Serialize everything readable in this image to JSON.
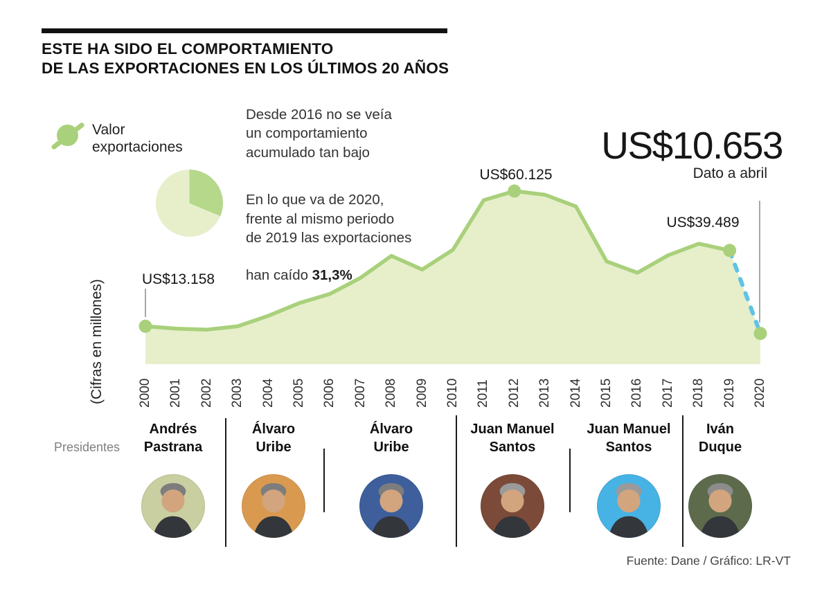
{
  "header": {
    "title_line1": "ESTE HA SIDO EL COMPORTAMIENTO",
    "title_line2": "DE LAS EXPORTACIONES EN LOS ÚLTIMOS 20 AÑOS"
  },
  "legend": {
    "label": "Valor\nexportaciones"
  },
  "annotations": {
    "note1": "Desde 2016 no se veía\nun comportamiento\nacumulado tan bajo",
    "note2_lines": "En lo que va de 2020,\nfrente al mismo periodo\nde 2019 las exportaciones",
    "note2_tail": "han caído",
    "note2_bold": "31,3%"
  },
  "pie": {
    "percent_dark": 31.3
  },
  "highlight": {
    "caption": "Dato a abril"
  },
  "axis": {
    "y_label": "(Cifras en millones)"
  },
  "presidents": {
    "caption": "Presidentes",
    "items": [
      {
        "name": "Andrés\nPastrana",
        "photo_bg": "#c9cfa0"
      },
      {
        "name": "Álvaro\nUribe",
        "photo_bg": "#d99a50"
      },
      {
        "name": "Álvaro\nUribe",
        "photo_bg": "#3e5f9c"
      },
      {
        "name": "Juan Manuel\nSantos",
        "photo_bg": "#7c4a38"
      },
      {
        "name": "Juan Manuel\nSantos",
        "photo_bg": "#47b2e4"
      },
      {
        "name": "Iván\nDuque",
        "photo_bg": "#5d6b4c"
      }
    ]
  },
  "footer": {
    "source": "Fuente: Dane / Gráfico: LR-VT"
  },
  "colors": {
    "line_green": "#a9d07b",
    "area_fill": "#e6efca",
    "pie_dark": "#b5d88b",
    "pie_light": "#e6efca",
    "dashed_blue": "#5ec3e6",
    "leader_gray": "#8a8a8a",
    "title_black": "#121212"
  },
  "chart_data": {
    "type": "area",
    "title": "Valor exportaciones",
    "xlabel": "",
    "ylabel": "(Cifras en millones)",
    "x": [
      2000,
      2001,
      2002,
      2003,
      2004,
      2005,
      2006,
      2007,
      2008,
      2009,
      2010,
      2011,
      2012,
      2013,
      2014,
      2015,
      2016,
      2017,
      2018,
      2019,
      2020
    ],
    "values": [
      13158,
      12330,
      11975,
      13129,
      16788,
      21190,
      24391,
      29991,
      37626,
      32846,
      39713,
      56915,
      60125,
      58824,
      54795,
      35691,
      31757,
      37800,
      41831,
      39489,
      10653
    ],
    "labeled_points": [
      {
        "year": 2000,
        "label": "US$13.158"
      },
      {
        "year": 2012,
        "label": "US$60.125"
      },
      {
        "year": 2019,
        "label": "US$39.489"
      },
      {
        "year": 2020,
        "label": "US$10.653"
      }
    ],
    "highlighted_points": [
      2000,
      2012,
      2019,
      2020
    ],
    "dashed_segment": [
      2019,
      2020
    ],
    "dashed_note": "Dato a abril",
    "ylim": [
      0,
      65000
    ],
    "grid": false,
    "legend_position": "top-left"
  }
}
